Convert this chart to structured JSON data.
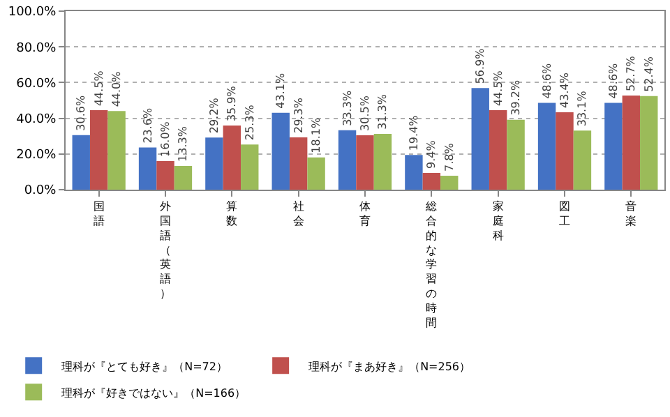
{
  "chart_data": {
    "type": "bar",
    "categories": [
      "国語",
      "外国語（英語）",
      "算数",
      "社会",
      "体育",
      "総合的な学習の時間",
      "家庭科",
      "図工",
      "音楽"
    ],
    "series": [
      {
        "name": "理科が『とても好き』（N=72）",
        "color": "#4472c4",
        "values": [
          30.6,
          23.6,
          29.2,
          43.1,
          33.3,
          19.4,
          56.9,
          48.6,
          48.6
        ],
        "value_labels": [
          "30.6%",
          "23.6%",
          "29.2%",
          "43.1%",
          "33.3%",
          "19.4%",
          "56.9%",
          "48.6%",
          "48.6%"
        ]
      },
      {
        "name": "理科が『まあ好き』（N=256）",
        "color": "#c0504d",
        "values": [
          44.5,
          16.0,
          35.9,
          29.3,
          30.5,
          9.4,
          44.5,
          43.4,
          52.7
        ],
        "value_labels": [
          "44.5%",
          "16.0%",
          "35.9%",
          "29.3%",
          "30.5%",
          "9.4%",
          "44.5%",
          "43.4%",
          "52.7%"
        ]
      },
      {
        "name": "理科が『好きではない』（N=166）",
        "color": "#9bbb59",
        "values": [
          44.0,
          13.3,
          25.3,
          18.1,
          31.3,
          7.8,
          39.2,
          33.1,
          52.4
        ],
        "value_labels": [
          "44.0%",
          "13.3%",
          "25.3%",
          "18.1%",
          "31.3%",
          "7.8%",
          "39.2%",
          "33.1%",
          "52.4%"
        ]
      }
    ],
    "ylim": [
      0,
      100
    ],
    "yticks": [
      {
        "value": 0,
        "label": "0.0%"
      },
      {
        "value": 20,
        "label": "20.0%"
      },
      {
        "value": 40,
        "label": "40.0%"
      },
      {
        "value": 60,
        "label": "60.0%"
      },
      {
        "value": 80,
        "label": "80.0%"
      },
      {
        "value": 100,
        "label": "100.0%"
      }
    ],
    "grid": "y",
    "legend": "bottom"
  }
}
